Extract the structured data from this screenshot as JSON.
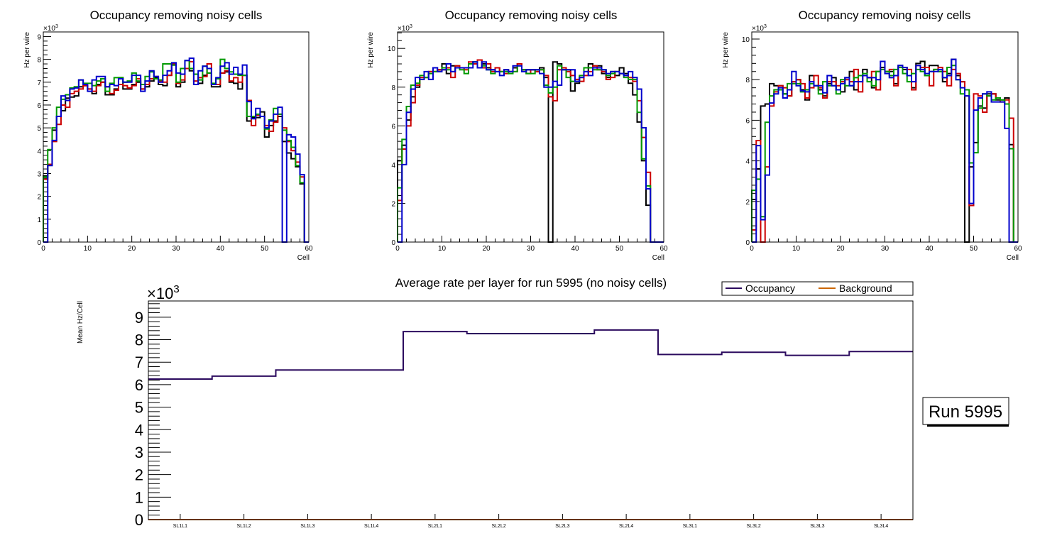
{
  "colors": {
    "black": "#000000",
    "red": "#cc0000",
    "green": "#009900",
    "blue": "#0000cc",
    "occupancy": "#2b0a5e",
    "background": "#cc6600"
  },
  "chart_data": [
    {
      "type": "line",
      "style": "step-histogram",
      "title": "Occupancy removing noisy cells",
      "xlabel": "Cell",
      "ylabel": "Hz per wire",
      "y_multiplier": "×10^3",
      "xlim": [
        0,
        60
      ],
      "ylim": [
        0,
        9.2
      ],
      "xticks": [
        0,
        10,
        20,
        30,
        40,
        50,
        60
      ],
      "yticks": [
        0,
        1,
        2,
        3,
        4,
        5,
        6,
        7,
        8,
        9
      ],
      "series": [
        {
          "name": "black",
          "color": "#000000",
          "values": [
            2.9,
            3.4,
            4.9,
            5.5,
            5.75,
            6.3,
            6.35,
            6.4,
            6.8,
            6.85,
            6.7,
            6.5,
            6.9,
            7.0,
            6.45,
            6.45,
            6.7,
            7.2,
            6.7,
            6.7,
            6.9,
            7.0,
            6.7,
            6.8,
            7.05,
            7.2,
            6.9,
            6.85,
            7.3,
            7.75,
            6.8,
            7.0,
            7.6,
            7.5,
            6.9,
            6.95,
            7.3,
            7.4,
            6.8,
            6.8,
            7.4,
            7.45,
            7.0,
            6.95,
            6.7,
            7.3,
            5.3,
            5.45,
            5.45,
            5.7,
            4.6,
            5.1,
            5.3,
            5.5,
            4.4,
            3.9,
            3.65,
            3.3,
            2.55,
            0
          ]
        },
        {
          "name": "red",
          "color": "#cc0000",
          "values": [
            2.75,
            3.4,
            4.4,
            5.15,
            6.0,
            5.9,
            6.5,
            6.6,
            6.7,
            6.85,
            6.7,
            6.6,
            6.85,
            7.0,
            6.8,
            6.5,
            6.65,
            6.9,
            6.85,
            6.75,
            6.85,
            7.15,
            6.7,
            6.9,
            7.15,
            7.25,
            7.05,
            7.0,
            7.3,
            7.8,
            6.95,
            7.1,
            7.6,
            7.9,
            7.05,
            7.2,
            7.25,
            7.8,
            6.9,
            6.9,
            7.4,
            7.5,
            7.05,
            7.2,
            7.0,
            7.3,
            6.2,
            5.1,
            5.55,
            5.5,
            5.1,
            4.85,
            5.25,
            5.6,
            5.0,
            4.4,
            4.0,
            3.5,
            2.85,
            0
          ]
        },
        {
          "name": "green",
          "color": "#009900",
          "values": [
            2.85,
            4.05,
            5.0,
            5.9,
            6.25,
            6.45,
            6.75,
            6.8,
            7.1,
            6.95,
            6.95,
            6.85,
            7.05,
            7.15,
            6.6,
            6.95,
            7.2,
            7.2,
            7.0,
            7.05,
            7.4,
            7.05,
            6.9,
            7.25,
            7.45,
            7.15,
            7.1,
            7.8,
            7.8,
            7.75,
            7.0,
            7.6,
            7.95,
            7.6,
            7.35,
            7.1,
            7.7,
            7.4,
            6.95,
            7.15,
            8.0,
            7.6,
            7.45,
            7.35,
            7.3,
            7.3,
            5.5,
            5.5,
            5.6,
            5.5,
            4.95,
            5.35,
            5.85,
            5.6,
            4.9,
            4.45,
            4.15,
            3.35,
            2.6,
            0
          ]
        },
        {
          "name": "blue",
          "color": "#0000cc",
          "values": [
            0,
            3.35,
            4.45,
            5.5,
            6.4,
            6.2,
            6.7,
            6.75,
            7.1,
            6.9,
            6.6,
            7.1,
            7.25,
            7.25,
            6.8,
            6.9,
            6.85,
            7.15,
            7.0,
            7.0,
            7.3,
            7.3,
            6.6,
            7.05,
            7.5,
            7.25,
            7.0,
            7.3,
            7.5,
            7.85,
            7.4,
            7.35,
            7.95,
            8.05,
            6.9,
            7.5,
            7.7,
            7.6,
            6.9,
            7.2,
            7.7,
            7.85,
            7.35,
            7.65,
            7.35,
            7.75,
            6.15,
            5.4,
            5.85,
            5.5,
            5.0,
            5.3,
            5.6,
            5.9,
            0,
            4.7,
            4.6,
            3.85,
            2.95,
            0
          ]
        }
      ]
    },
    {
      "type": "line",
      "style": "step-histogram",
      "title": "Occupancy removing noisy cells",
      "xlabel": "Cell",
      "ylabel": "Hz per wire",
      "y_multiplier": "×10^3",
      "xlim": [
        0,
        60
      ],
      "ylim": [
        0,
        10.85
      ],
      "xticks": [
        0,
        10,
        20,
        30,
        40,
        50,
        60
      ],
      "yticks": [
        0,
        2,
        4,
        6,
        8,
        10
      ],
      "series": [
        {
          "name": "black",
          "color": "#000000",
          "values": [
            4.2,
            5.0,
            6.3,
            7.5,
            8.0,
            8.4,
            8.5,
            8.8,
            8.8,
            8.9,
            9.2,
            8.7,
            9.1,
            9.1,
            9.0,
            9.0,
            9.2,
            9.3,
            9.4,
            9.2,
            9.0,
            8.9,
            9.0,
            8.8,
            8.9,
            8.8,
            9.0,
            9.2,
            8.9,
            8.9,
            8.9,
            8.8,
            9.0,
            8.5,
            0,
            9.3,
            9.2,
            8.9,
            8.9,
            7.8,
            8.2,
            8.5,
            8.8,
            9.2,
            9.1,
            9.1,
            8.7,
            8.5,
            8.8,
            8.6,
            9.0,
            8.7,
            8.2,
            7.6,
            6.2,
            4.2,
            1.9,
            0,
            0,
            0
          ]
        },
        {
          "name": "red",
          "color": "#cc0000",
          "values": [
            2.15,
            4.8,
            6.0,
            7.2,
            8.1,
            8.5,
            8.5,
            8.8,
            8.8,
            8.9,
            8.9,
            9.0,
            8.5,
            9.1,
            9.0,
            8.9,
            9.3,
            9.2,
            9.4,
            9.0,
            9.2,
            8.8,
            9.0,
            8.8,
            8.7,
            8.8,
            8.8,
            9.2,
            8.9,
            8.7,
            8.9,
            8.8,
            8.9,
            8.6,
            7.5,
            7.3,
            8.9,
            9.0,
            8.8,
            8.6,
            8.4,
            8.3,
            8.6,
            8.8,
            9.1,
            8.9,
            8.8,
            8.4,
            8.5,
            8.8,
            8.7,
            8.6,
            8.5,
            8.3,
            7.3,
            5.4,
            3.6,
            0,
            0,
            0
          ]
        },
        {
          "name": "green",
          "color": "#009900",
          "values": [
            2.8,
            5.3,
            7.0,
            8.1,
            8.2,
            8.6,
            8.5,
            8.7,
            8.8,
            8.8,
            9.0,
            8.9,
            8.8,
            9.0,
            8.9,
            8.7,
            9.2,
            9.3,
            9.0,
            9.1,
            8.9,
            8.7,
            8.8,
            8.8,
            8.8,
            8.7,
            8.8,
            9.1,
            8.9,
            8.7,
            8.7,
            8.9,
            8.9,
            8.1,
            7.7,
            8.0,
            9.1,
            8.9,
            8.5,
            8.3,
            8.3,
            8.6,
            9.0,
            9.0,
            8.9,
            8.9,
            8.9,
            8.6,
            8.7,
            8.8,
            8.7,
            8.5,
            8.4,
            8.4,
            6.7,
            4.3,
            2.9,
            0,
            0,
            0
          ]
        },
        {
          "name": "blue",
          "color": "#0000cc",
          "values": [
            0,
            4.0,
            6.7,
            7.9,
            8.5,
            8.4,
            8.8,
            8.4,
            9.0,
            8.8,
            8.9,
            9.2,
            8.8,
            9.0,
            9.0,
            9.0,
            9.0,
            9.3,
            9.0,
            9.3,
            8.9,
            8.9,
            8.8,
            8.6,
            8.9,
            8.8,
            9.1,
            9.1,
            8.8,
            8.9,
            8.9,
            8.9,
            8.7,
            8.0,
            8.0,
            8.3,
            8.1,
            8.9,
            8.9,
            8.9,
            8.3,
            8.5,
            8.8,
            8.6,
            9.0,
            9.0,
            8.9,
            8.7,
            8.8,
            8.8,
            8.7,
            8.6,
            8.8,
            8.5,
            7.9,
            5.9,
            2.75,
            0,
            0,
            0
          ]
        }
      ]
    },
    {
      "type": "line",
      "style": "step-histogram",
      "title": "Occupancy removing noisy cells",
      "xlabel": "Cell",
      "ylabel": "Hz per wire",
      "y_multiplier": "×10^3",
      "xlim": [
        0,
        60
      ],
      "ylim": [
        0,
        10.35
      ],
      "xticks": [
        0,
        10,
        20,
        30,
        40,
        50,
        60
      ],
      "yticks": [
        0,
        2,
        4,
        6,
        8,
        10
      ],
      "series": [
        {
          "name": "black",
          "color": "#000000",
          "values": [
            2.1,
            3.6,
            6.7,
            6.8,
            7.8,
            7.7,
            7.7,
            7.3,
            7.2,
            7.9,
            8.0,
            7.5,
            7.0,
            8.2,
            7.7,
            7.5,
            7.2,
            7.8,
            8.1,
            7.5,
            7.4,
            8.1,
            8.4,
            7.5,
            8.2,
            8.5,
            8.1,
            7.6,
            8.4,
            8.6,
            8.4,
            8.4,
            7.8,
            8.7,
            8.5,
            8.2,
            7.6,
            8.8,
            8.9,
            8.2,
            8.7,
            8.7,
            8.4,
            7.9,
            8.3,
            9.0,
            8.2,
            7.9,
            0,
            3.7,
            4.9,
            6.7,
            6.6,
            7.3,
            7.3,
            7.0,
            7.0,
            7.1,
            4.8,
            0
          ]
        },
        {
          "name": "red",
          "color": "#cc0000",
          "values": [
            0.6,
            5.0,
            0,
            3.7,
            6.7,
            7.4,
            7.7,
            7.6,
            7.2,
            7.9,
            8.0,
            7.8,
            7.1,
            7.6,
            8.2,
            7.6,
            7.1,
            7.9,
            7.9,
            7.7,
            7.9,
            8.0,
            7.9,
            8.5,
            7.4,
            8.2,
            8.1,
            8.4,
            7.5,
            8.5,
            8.4,
            8.5,
            7.7,
            8.6,
            8.6,
            8.5,
            7.5,
            8.7,
            8.6,
            8.6,
            7.7,
            8.5,
            8.6,
            8.4,
            7.7,
            8.5,
            8.3,
            7.9,
            7.2,
            1.8,
            7.3,
            7.2,
            6.4,
            7.2,
            7.3,
            7.1,
            6.9,
            7.0,
            6.1,
            0
          ]
        },
        {
          "name": "green",
          "color": "#009900",
          "values": [
            2.55,
            3.1,
            1.25,
            5.9,
            7.2,
            7.5,
            7.5,
            7.3,
            7.8,
            7.8,
            7.8,
            7.4,
            7.5,
            7.8,
            7.7,
            7.3,
            7.9,
            7.7,
            7.7,
            7.3,
            8.0,
            7.7,
            7.7,
            8.1,
            8.2,
            8.3,
            7.9,
            7.7,
            8.4,
            8.5,
            8.4,
            8.2,
            8.5,
            8.6,
            8.3,
            7.9,
            8.3,
            8.5,
            8.4,
            8.2,
            8.4,
            8.5,
            8.4,
            8.1,
            8.6,
            8.7,
            8.0,
            7.3,
            7.5,
            3.9,
            4.4,
            6.6,
            7.3,
            7.2,
            7.0,
            7.1,
            7.0,
            6.8,
            4.6,
            0
          ]
        },
        {
          "name": "blue",
          "color": "#0000cc",
          "values": [
            0,
            4.75,
            1.1,
            3.3,
            6.85,
            7.3,
            7.6,
            7.1,
            7.5,
            8.4,
            7.7,
            7.45,
            7.4,
            7.9,
            7.7,
            7.7,
            7.35,
            8.2,
            7.7,
            7.5,
            7.8,
            8.1,
            7.7,
            7.9,
            7.9,
            8.2,
            8.1,
            8.1,
            8.0,
            8.9,
            8.3,
            8.1,
            8.2,
            8.7,
            8.6,
            8.2,
            7.9,
            8.7,
            8.5,
            8.3,
            8.4,
            8.4,
            8.5,
            8.1,
            8.2,
            9.0,
            8.0,
            7.6,
            7.2,
            1.9,
            6.5,
            7.1,
            7.3,
            7.4,
            6.9,
            6.9,
            6.9,
            5.6,
            0,
            0
          ]
        }
      ]
    },
    {
      "type": "line",
      "style": "step-histogram",
      "title": "Average rate per layer for run 5995 (no noisy cells)",
      "xlabel": "",
      "ylabel": "Mean Hz/Cell",
      "y_multiplier": "×10^3",
      "ylim": [
        0,
        9.72
      ],
      "yticks": [
        0,
        1,
        2,
        3,
        4,
        5,
        6,
        7,
        8,
        9
      ],
      "categories": [
        "SL1L1",
        "SL1L2",
        "SL1L3",
        "SL1L4",
        "SL2L1",
        "SL2L2",
        "SL2L3",
        "SL2L4",
        "SL3L1",
        "SL3L2",
        "SL3L3",
        "SL3L4"
      ],
      "series": [
        {
          "name": "Occupancy",
          "color": "#2b0a5e",
          "values": [
            6.25,
            6.38,
            6.65,
            6.65,
            8.36,
            8.27,
            8.27,
            8.43,
            7.34,
            7.44,
            7.3,
            7.47
          ]
        },
        {
          "name": "Background",
          "color": "#cc6600",
          "values": [
            0,
            0,
            0,
            0,
            0,
            0,
            0,
            0,
            0,
            0,
            0,
            0
          ]
        }
      ],
      "legend": {
        "entries": [
          "Occupancy",
          "Background"
        ],
        "placement": "top-right"
      },
      "annotation": "Run 5995"
    }
  ]
}
